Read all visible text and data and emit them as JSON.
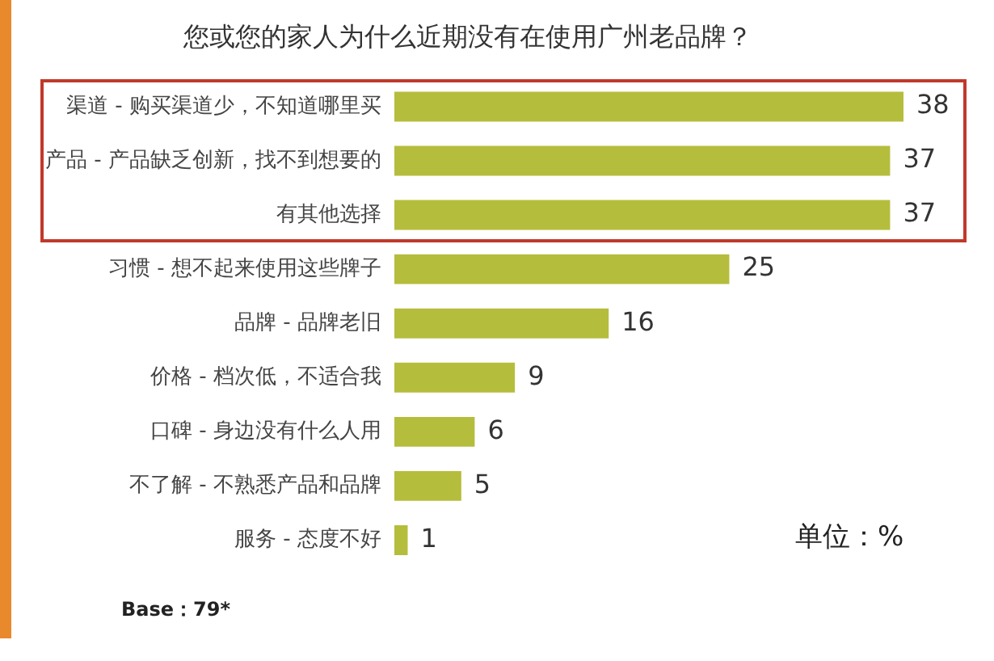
{
  "chart_data": {
    "type": "bar",
    "orientation": "horizontal",
    "title": "您或您的家人为什么近期没有在使用广州老品牌？",
    "categories": [
      "渠道 - 购买渠道少，不知道哪里买",
      "产品 - 产品缺乏创新，找不到想要的",
      "有其他选择",
      "习惯 - 想不起来使用这些牌子",
      "品牌 - 品牌老旧",
      "价格 - 档次低，不适合我",
      "口碑 - 身边没有什么人用",
      "不了解 - 不熟悉产品和品牌",
      "服务 - 态度不好"
    ],
    "values": [
      38,
      37,
      37,
      25,
      16,
      9,
      6,
      5,
      1
    ],
    "color": "#b5bd3c",
    "data_labels": true,
    "grid": false,
    "legend": false,
    "annotations": [
      "单位：%",
      "Base：79*"
    ]
  }
}
